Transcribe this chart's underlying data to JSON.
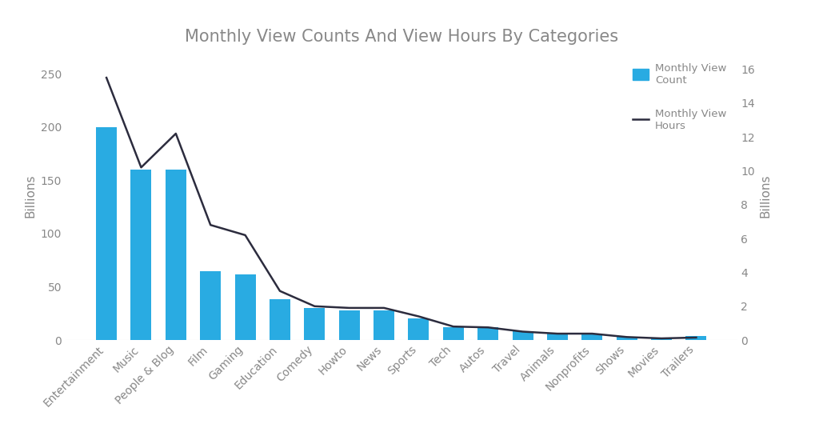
{
  "categories": [
    "Entertainment",
    "Music",
    "People & Blog",
    "Film",
    "Gaming",
    "Education",
    "Comedy",
    "Howto",
    "News",
    "Sports",
    "Tech",
    "Autos",
    "Travel",
    "Animals",
    "Nonprofits",
    "Shows",
    "Movies",
    "Trailers"
  ],
  "view_counts": [
    200,
    160,
    160,
    65,
    62,
    38,
    30,
    28,
    28,
    20,
    12,
    12,
    8,
    6,
    6,
    3,
    2,
    4
  ],
  "view_hours": [
    15.5,
    10.2,
    12.2,
    6.8,
    6.2,
    2.9,
    2.0,
    1.9,
    1.9,
    1.4,
    0.8,
    0.75,
    0.5,
    0.38,
    0.38,
    0.18,
    0.1,
    0.15
  ],
  "bar_color": "#29ABE2",
  "line_color": "#2c2c3e",
  "title": "Monthly View Counts And View Hours By Categories",
  "ylabel_left": "Billions",
  "ylabel_right": "Billions",
  "ylim_left": [
    0,
    270
  ],
  "ylim_right": [
    0,
    17
  ],
  "yticks_left": [
    0,
    50,
    100,
    150,
    200,
    250
  ],
  "yticks_right": [
    0,
    2,
    4,
    6,
    8,
    10,
    12,
    14,
    16
  ],
  "legend_bar_label": "Monthly View\nCount",
  "legend_line_label": "Monthly View\nHours",
  "title_color": "#888888",
  "tick_color": "#888888",
  "label_color": "#888888",
  "background_color": "#ffffff",
  "title_fontsize": 15,
  "tick_fontsize": 10,
  "label_fontsize": 11
}
